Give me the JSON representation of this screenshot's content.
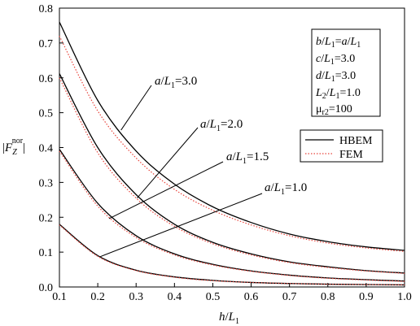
{
  "chart_data": {
    "type": "line",
    "xlabel": {
      "main": "h",
      "sep": "/",
      "sym": "L",
      "sub": "1"
    },
    "ylabel": {
      "bar": "|",
      "sym": "F",
      "sub": "Z",
      "sup": "nor"
    },
    "xlim": [
      0.1,
      1.0
    ],
    "ylim": [
      0.0,
      0.8
    ],
    "xticks": [
      "0.1",
      "0.2",
      "0.3",
      "0.4",
      "0.5",
      "0.6",
      "0.7",
      "0.8",
      "0.9",
      "1.0"
    ],
    "yticks": [
      "0.0",
      "0.1",
      "0.2",
      "0.3",
      "0.4",
      "0.5",
      "0.6",
      "0.7",
      "0.8"
    ],
    "grid": false,
    "legend": {
      "position": "center-right",
      "entries": [
        {
          "label": "HBEM",
          "color": "#000000",
          "style": "solid"
        },
        {
          "label": "FEM",
          "color": "#e8453c",
          "style": "dotted"
        }
      ]
    },
    "parameters": [
      {
        "a": "b",
        "b": "/",
        "c": "L",
        "d": "1",
        "e": "=",
        "f": "a",
        "g": "/",
        "h": "L",
        "i": "1"
      },
      {
        "a": "c",
        "b": "/",
        "c": "L",
        "d": "1",
        "e": "=3.0"
      },
      {
        "a": "d",
        "b": "/",
        "c": "L",
        "d": "1",
        "e": "=3.0"
      },
      {
        "a": "L",
        "b": "2",
        "c": "/",
        "d": "L",
        "e": "1",
        "f": "=1.0"
      },
      {
        "a": "μ",
        "b": "r2",
        "c": "=100"
      }
    ],
    "annotations": [
      {
        "pre": "a",
        "sep": "/",
        "sym": "L",
        "sub": "1",
        "val": "=3.0"
      },
      {
        "pre": "a",
        "sep": "/",
        "sym": "L",
        "sub": "1",
        "val": "=2.0"
      },
      {
        "pre": "a",
        "sep": "/",
        "sym": "L",
        "sub": "1",
        "val": "=1.5"
      },
      {
        "pre": "a",
        "sep": "/",
        "sym": "L",
        "sub": "1",
        "val": "=1.0"
      }
    ],
    "x": [
      0.1,
      0.2,
      0.3,
      0.4,
      0.5,
      0.6,
      0.7,
      0.8,
      0.9,
      1.0
    ],
    "series": [
      {
        "group": "a/L1=3.0",
        "method": "HBEM",
        "values": [
          0.76,
          0.535,
          0.39,
          0.295,
          0.23,
          0.185,
          0.152,
          0.13,
          0.115,
          0.105
        ]
      },
      {
        "group": "a/L1=3.0",
        "method": "FEM",
        "values": [
          0.72,
          0.505,
          0.37,
          0.28,
          0.22,
          0.178,
          0.147,
          0.126,
          0.112,
          0.102
        ]
      },
      {
        "group": "a/L1=2.0",
        "method": "HBEM",
        "values": [
          0.612,
          0.4,
          0.265,
          0.18,
          0.128,
          0.095,
          0.072,
          0.058,
          0.047,
          0.04
        ]
      },
      {
        "group": "a/L1=2.0",
        "method": "FEM",
        "values": [
          0.6,
          0.385,
          0.255,
          0.174,
          0.124,
          0.092,
          0.07,
          0.056,
          0.046,
          0.039
        ]
      },
      {
        "group": "a/L1=1.5",
        "method": "HBEM",
        "values": [
          0.395,
          0.24,
          0.147,
          0.095,
          0.065,
          0.046,
          0.034,
          0.026,
          0.021,
          0.017
        ]
      },
      {
        "group": "a/L1=1.5",
        "method": "FEM",
        "values": [
          0.39,
          0.232,
          0.142,
          0.092,
          0.063,
          0.045,
          0.033,
          0.025,
          0.02,
          0.016
        ]
      },
      {
        "group": "a/L1=1.0",
        "method": "HBEM",
        "values": [
          0.18,
          0.09,
          0.048,
          0.029,
          0.019,
          0.013,
          0.01,
          0.008,
          0.007,
          0.006
        ]
      },
      {
        "group": "a/L1=1.0",
        "method": "FEM",
        "values": [
          0.178,
          0.088,
          0.047,
          0.028,
          0.018,
          0.013,
          0.01,
          0.008,
          0.007,
          0.006
        ]
      }
    ]
  }
}
